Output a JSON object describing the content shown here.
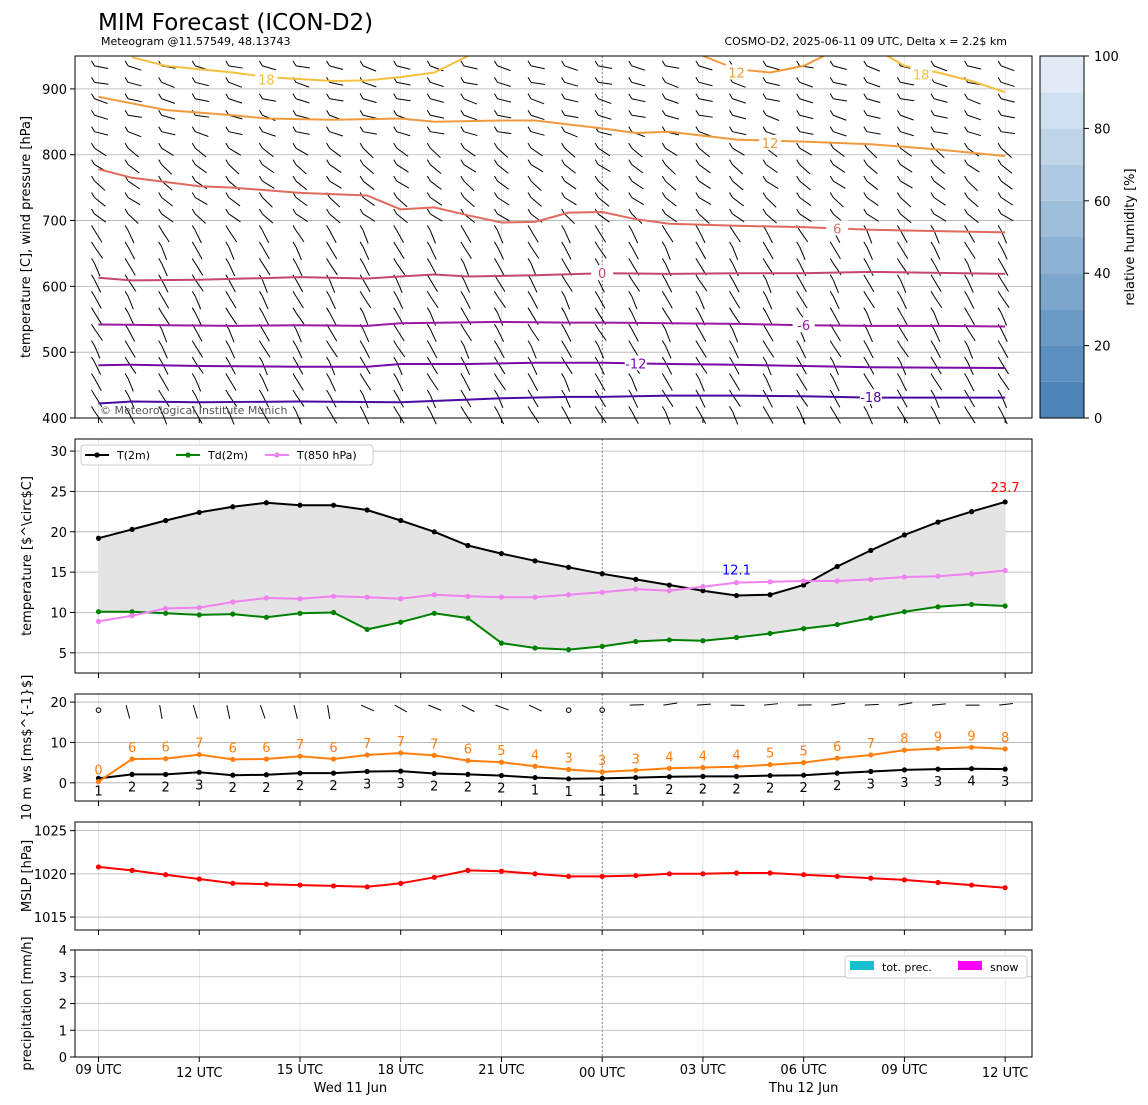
{
  "header": {
    "title": "MIM Forecast (ICON-D2)",
    "subtitle_left": "Meteogram @11.57549, 48.13743",
    "subtitle_right": "COSMO-D2, 2025-06-11 09 UTC, Delta x = 2.2$ km",
    "copyright": "© Meteorological Institute Munich"
  },
  "time_axis": {
    "hours": [
      9,
      10,
      11,
      12,
      13,
      14,
      15,
      16,
      17,
      18,
      19,
      20,
      21,
      22,
      23,
      24,
      25,
      26,
      27,
      28,
      29,
      30,
      31,
      32,
      33,
      34,
      35,
      36
    ],
    "ticks": [
      {
        "h": 9,
        "label": "09 UTC"
      },
      {
        "h": 12,
        "label": "12 UTC"
      },
      {
        "h": 15,
        "label": "15 UTC"
      },
      {
        "h": 18,
        "label": "18 UTC"
      },
      {
        "h": 21,
        "label": "21 UTC"
      },
      {
        "h": 24,
        "label": "00 UTC"
      },
      {
        "h": 27,
        "label": "03 UTC"
      },
      {
        "h": 30,
        "label": "06 UTC"
      },
      {
        "h": 33,
        "label": "09 UTC"
      },
      {
        "h": 36,
        "label": "12 UTC"
      }
    ],
    "day_labels": [
      {
        "h": 16.5,
        "label": "Wed 11 Jun"
      },
      {
        "h": 30,
        "label": "Thu 12 Jun"
      }
    ],
    "midnight_hour": 24
  },
  "chart_data": [
    {
      "type": "heatmap",
      "name": "pressure-levels",
      "ylabel": "temperature [C], wind pressure [hPa]",
      "ylim": [
        950,
        400
      ],
      "yticks": [
        400,
        500,
        600,
        700,
        800,
        900
      ],
      "colorbar": {
        "label": "relative humidity [%]",
        "range": [
          0,
          100
        ],
        "ticks": [
          0,
          20,
          40,
          60,
          80,
          100
        ]
      },
      "isotherms": [
        {
          "label": "-18",
          "color": "#4b0aa0",
          "points": [
            [
              9,
              422
            ],
            [
              10,
              425
            ],
            [
              12,
              424
            ],
            [
              15,
              425
            ],
            [
              18,
              424
            ],
            [
              20,
              428
            ],
            [
              21,
              430
            ],
            [
              23,
              432
            ],
            [
              24,
              432
            ],
            [
              26,
              434
            ],
            [
              28,
              434
            ],
            [
              30,
              433
            ],
            [
              32,
              431
            ],
            [
              34,
              431
            ],
            [
              36,
              431
            ]
          ],
          "label_at": [
            32,
            432
          ]
        },
        {
          "label": "-12",
          "color": "#7a0aa8",
          "points": [
            [
              9,
              480
            ],
            [
              10,
              481
            ],
            [
              12,
              479
            ],
            [
              15,
              478
            ],
            [
              17,
              478
            ],
            [
              18,
              482
            ],
            [
              20,
              482
            ],
            [
              22,
              484
            ],
            [
              24,
              484
            ],
            [
              26,
              482
            ],
            [
              28,
              481
            ],
            [
              30,
              479
            ],
            [
              32,
              477
            ],
            [
              36,
              476
            ]
          ],
          "label_at": [
            25,
            483
          ]
        },
        {
          "label": "-6",
          "color": "#9a1aa0",
          "points": [
            [
              9,
              542
            ],
            [
              11,
              541
            ],
            [
              13,
              540
            ],
            [
              15,
              541
            ],
            [
              17,
              540
            ],
            [
              18,
              544
            ],
            [
              21,
              546
            ],
            [
              23,
              545
            ],
            [
              24,
              545
            ],
            [
              26,
              544
            ],
            [
              28,
              543
            ],
            [
              30,
              541
            ],
            [
              32,
              540
            ],
            [
              34,
              540
            ],
            [
              36,
              539
            ]
          ],
          "label_at": [
            30,
            541
          ]
        },
        {
          "label": "0",
          "color": "#c44770",
          "points": [
            [
              9,
              613
            ],
            [
              10,
              609
            ],
            [
              12,
              610
            ],
            [
              15,
              614
            ],
            [
              17,
              612
            ],
            [
              19,
              618
            ],
            [
              20,
              615
            ],
            [
              22,
              617
            ],
            [
              24,
              620
            ],
            [
              26,
              619
            ],
            [
              28,
              620
            ],
            [
              30,
              620
            ],
            [
              32,
              622
            ],
            [
              36,
              619
            ]
          ],
          "label_at": [
            24,
            620
          ]
        },
        {
          "label": "6",
          "color": "#e06a5e",
          "points": [
            [
              9,
              778
            ],
            [
              10,
              765
            ],
            [
              12,
              752
            ],
            [
              13,
              750
            ],
            [
              15,
              742
            ],
            [
              17,
              738
            ],
            [
              18,
              717
            ],
            [
              19,
              720
            ],
            [
              20,
              708
            ],
            [
              21,
              697
            ],
            [
              22,
              698
            ],
            [
              23,
              712
            ],
            [
              24,
              713
            ],
            [
              25,
              702
            ],
            [
              26,
              695
            ],
            [
              28,
              692
            ],
            [
              30,
              690
            ],
            [
              32,
              686
            ],
            [
              34,
              684
            ],
            [
              36,
              682
            ]
          ],
          "label_at": [
            31,
            688
          ]
        },
        {
          "label": "12",
          "color": "#f09a3e",
          "points": [
            [
              9,
              888
            ],
            [
              11,
              868
            ],
            [
              13,
              860
            ],
            [
              14,
              855
            ],
            [
              16,
              853
            ],
            [
              18,
              855
            ],
            [
              19,
              850
            ],
            [
              21,
              852
            ],
            [
              22,
              852
            ],
            [
              24,
              840
            ],
            [
              25,
              833
            ],
            [
              26,
              835
            ],
            [
              28,
              823
            ],
            [
              30,
              820
            ],
            [
              32,
              816
            ],
            [
              34,
              808
            ],
            [
              36,
              798
            ]
          ],
          "label_at": [
            29,
            818
          ]
        },
        {
          "label": "18",
          "color": "#f5c040",
          "points": [
            [
              10,
              948
            ],
            [
              11,
              935
            ],
            [
              13,
              925
            ],
            [
              14,
              918
            ],
            [
              16,
              912
            ],
            [
              17,
              913
            ],
            [
              18,
              918
            ],
            [
              19,
              925
            ],
            [
              20,
              950
            ]
          ],
          "label_at": [
            14,
            914
          ]
        }
      ],
      "isotherm_12_lower": {
        "color": "#f09a3e",
        "points": [
          [
            27,
            950
          ],
          [
            28,
            930
          ],
          [
            29,
            925
          ],
          [
            30,
            935
          ],
          [
            30.6,
            950
          ]
        ],
        "label_at": [
          28,
          925
        ]
      },
      "isotherm_18_lower": {
        "color": "#f5c040",
        "points": [
          [
            32.5,
            950
          ],
          [
            33,
            935
          ],
          [
            34,
            925
          ],
          [
            35,
            912
          ],
          [
            36,
            895
          ]
        ],
        "label_at": [
          33.5,
          922
        ]
      },
      "circles_rows": [
        775,
        800,
        825,
        850,
        875,
        900,
        925
      ]
    },
    {
      "type": "line",
      "name": "temperature-2m",
      "ylabel": "temperature [$^\\circ$C]",
      "ylim": [
        2.5,
        31.5
      ],
      "yticks": [
        5,
        10,
        15,
        20,
        25,
        30
      ],
      "max_label": "23.7",
      "min_label": "12.1",
      "series": [
        {
          "name": "T(2m)",
          "color": "#000000",
          "values": [
            19.2,
            20.3,
            21.4,
            22.4,
            23.1,
            23.6,
            23.3,
            23.3,
            22.7,
            21.4,
            20.0,
            18.3,
            17.3,
            16.4,
            15.6,
            14.8,
            14.1,
            13.4,
            12.7,
            12.1,
            12.2,
            13.4,
            15.7,
            17.7,
            19.6,
            21.2,
            22.5,
            23.7
          ]
        },
        {
          "name": "Td(2m)",
          "color": "#008000",
          "values": [
            10.1,
            10.1,
            9.9,
            9.7,
            9.8,
            9.4,
            9.9,
            10.0,
            7.9,
            8.8,
            9.9,
            9.3,
            6.2,
            5.6,
            5.4,
            5.8,
            6.4,
            6.6,
            6.5,
            6.9,
            7.4,
            8.0,
            8.5,
            9.3,
            10.1,
            10.7,
            11.0,
            10.8
          ]
        },
        {
          "name": "T(850 hPa)",
          "color": "#ee82ee",
          "values": [
            8.9,
            9.6,
            10.5,
            10.6,
            11.3,
            11.8,
            11.7,
            12.0,
            11.9,
            11.7,
            12.2,
            12.0,
            11.9,
            11.9,
            12.2,
            12.5,
            12.9,
            12.7,
            13.2,
            13.7,
            13.8,
            13.9,
            13.9,
            14.1,
            14.4,
            14.5,
            14.8,
            15.2
          ]
        }
      ]
    },
    {
      "type": "line",
      "name": "wind-10m",
      "ylabel": "10 m ws [ms$^{-1}$]",
      "ylim": [
        -4.5,
        22
      ],
      "yticks": [
        0,
        10,
        20
      ],
      "series": [
        {
          "name": "mean wind",
          "color": "#000000",
          "values": [
            1,
            2,
            2,
            3,
            2,
            2,
            2,
            2,
            3,
            3,
            2,
            2,
            2,
            1,
            1,
            1,
            1,
            2,
            2,
            2,
            2,
            2,
            2,
            3,
            3,
            3,
            4,
            3
          ],
          "values_exact": [
            1.1,
            2.1,
            2.1,
            2.6,
            1.9,
            2.0,
            2.4,
            2.4,
            2.8,
            2.9,
            2.3,
            2.1,
            1.8,
            1.3,
            1.0,
            1.1,
            1.3,
            1.5,
            1.6,
            1.6,
            1.8,
            1.9,
            2.4,
            2.8,
            3.2,
            3.4,
            3.5,
            3.4
          ]
        },
        {
          "name": "gust",
          "color": "#ff7f0e",
          "values": [
            0,
            6,
            6,
            7,
            6,
            6,
            7,
            6,
            7,
            7,
            7,
            6,
            5,
            4,
            3,
            3,
            3,
            4,
            4,
            4,
            5,
            5,
            6,
            7,
            8,
            9,
            9,
            8
          ],
          "values_exact": [
            0.3,
            5.9,
            6.0,
            7.0,
            5.8,
            5.9,
            6.6,
            5.9,
            6.9,
            7.4,
            6.8,
            5.5,
            5.1,
            4.1,
            3.3,
            2.7,
            3.1,
            3.6,
            3.8,
            4.0,
            4.5,
            5.0,
            6.1,
            6.9,
            8.1,
            8.5,
            8.8,
            8.4
          ]
        }
      ],
      "calm_hours": [
        9,
        23,
        24
      ]
    },
    {
      "type": "line",
      "name": "mslp",
      "ylabel": "MSLP [hPa]",
      "ylim": [
        1013.5,
        1026
      ],
      "yticks": [
        1015,
        1020,
        1025
      ],
      "series": [
        {
          "name": "MSLP",
          "color": "#ff0000",
          "values": [
            1020.8,
            1020.4,
            1019.9,
            1019.4,
            1018.9,
            1018.8,
            1018.7,
            1018.6,
            1018.5,
            1018.9,
            1019.6,
            1020.4,
            1020.3,
            1020.0,
            1019.7,
            1019.7,
            1019.8,
            1020.0,
            1020.0,
            1020.1,
            1020.1,
            1019.9,
            1019.7,
            1019.5,
            1019.3,
            1019.0,
            1018.7,
            1018.4
          ]
        }
      ]
    },
    {
      "type": "bar",
      "name": "precipitation",
      "ylabel": "precipitation [mm/h]",
      "ylim": [
        0,
        4
      ],
      "yticks": [
        0,
        1,
        2,
        3,
        4
      ],
      "legend": [
        {
          "label": "tot. prec.",
          "color": "#17becf"
        },
        {
          "label": "snow",
          "color": "#ff00ff"
        }
      ],
      "series": [
        {
          "name": "tot. prec.",
          "values": [
            0,
            0,
            0,
            0,
            0,
            0,
            0,
            0,
            0,
            0,
            0,
            0,
            0,
            0,
            0,
            0,
            0,
            0,
            0,
            0,
            0,
            0,
            0,
            0,
            0,
            0,
            0,
            0
          ]
        },
        {
          "name": "snow",
          "values": [
            0,
            0,
            0,
            0,
            0,
            0,
            0,
            0,
            0,
            0,
            0,
            0,
            0,
            0,
            0,
            0,
            0,
            0,
            0,
            0,
            0,
            0,
            0,
            0,
            0,
            0,
            0,
            0
          ]
        }
      ]
    }
  ]
}
